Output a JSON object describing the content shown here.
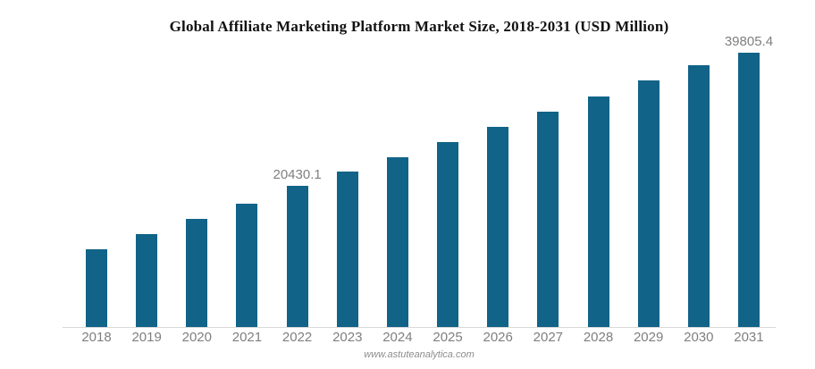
{
  "page": {
    "footer_text": "www.astuteanalytica.com"
  },
  "colors": {
    "bar": "#116388",
    "data_label": "#7f7f7f",
    "axis_label": "#7f7f7f",
    "axis_line": "#d9d9d9",
    "title": "#111111",
    "footer": "#8c8c8c",
    "background": "#ffffff"
  },
  "chart_data": {
    "type": "bar",
    "title": "Global Affiliate Marketing Platform Market Size, 2018-2031 (USD Million)",
    "xlabel": "",
    "ylabel": "",
    "categories": [
      "2018",
      "2019",
      "2020",
      "2021",
      "2022",
      "2023",
      "2024",
      "2025",
      "2026",
      "2027",
      "2028",
      "2029",
      "2030",
      "2031"
    ],
    "values": [
      11250,
      13450,
      15700,
      17950,
      20430.1,
      22550,
      24700,
      26900,
      29100,
      31250,
      33500,
      35750,
      38050,
      39805.4
    ],
    "data_labels": [
      "",
      "",
      "",
      "",
      "20430.1",
      "",
      "",
      "",
      "",
      "",
      "",
      "",
      "",
      "39805.4"
    ],
    "ylim": [
      0,
      42000
    ],
    "grid": false,
    "legend": false,
    "y_axis_shown": false,
    "x_axis_line_shown": true
  }
}
